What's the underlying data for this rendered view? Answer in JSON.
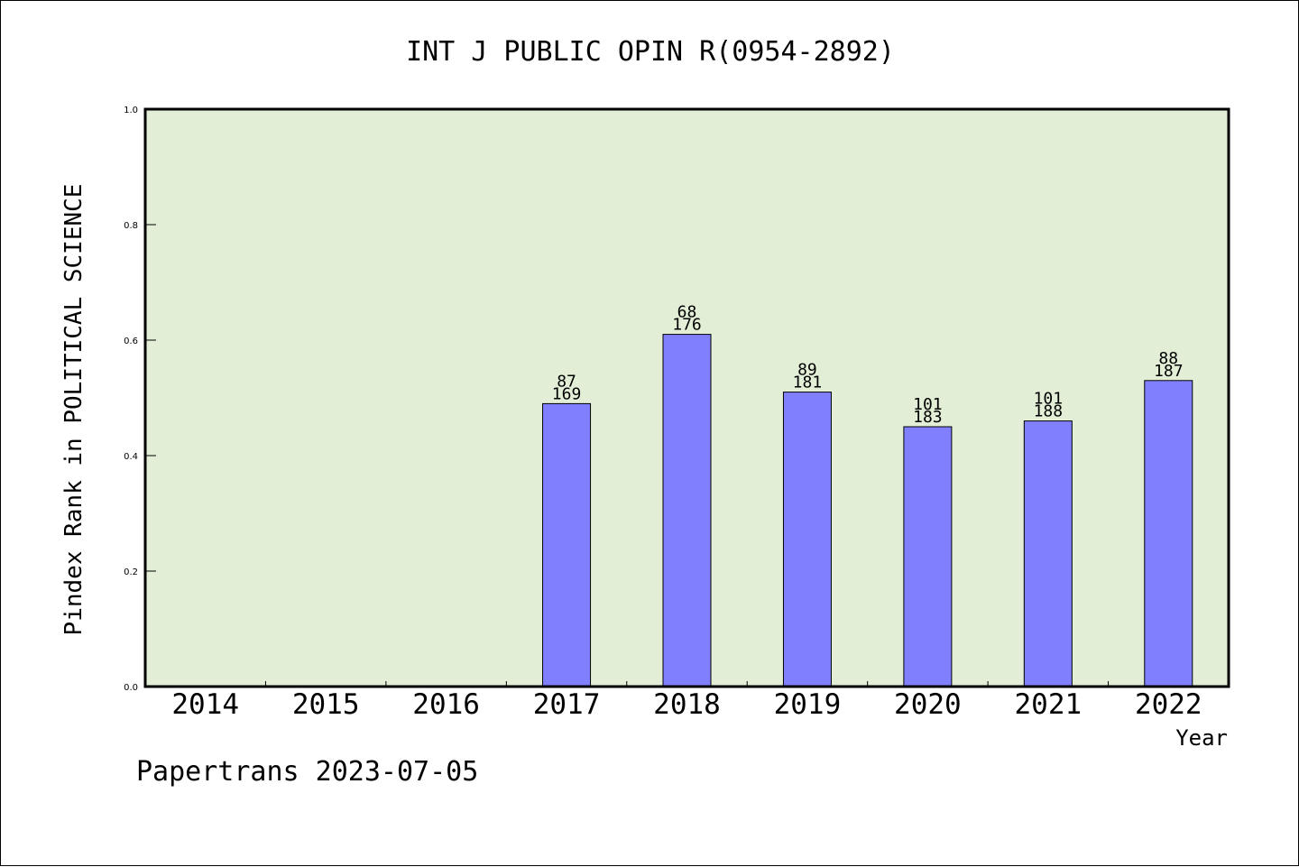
{
  "chart_data": {
    "type": "bar",
    "title": "INT J PUBLIC OPIN R(0954-2892)",
    "xlabel": "Year",
    "ylabel": "Pindex Rank in POLITICAL SCIENCE",
    "ylim": [
      0,
      1.0
    ],
    "yticks": [
      "0.0",
      "0.2",
      "0.4",
      "0.6",
      "0.8",
      "1.0"
    ],
    "categories": [
      "2014",
      "2015",
      "2016",
      "2017",
      "2018",
      "2019",
      "2020",
      "2021",
      "2022"
    ],
    "values": [
      null,
      null,
      null,
      0.49,
      0.61,
      0.51,
      0.45,
      0.46,
      0.53
    ],
    "labels_top": [
      null,
      null,
      null,
      "87",
      "68",
      "89",
      "101",
      "101",
      "88"
    ],
    "labels_bottom": [
      null,
      null,
      null,
      "169",
      "176",
      "181",
      "183",
      "188",
      "187"
    ],
    "grid": false,
    "colors": {
      "bar": "#8080ff",
      "plot_background": "#e2efd6",
      "axis": "#000000"
    }
  },
  "footer": "Papertrans 2023-07-05"
}
